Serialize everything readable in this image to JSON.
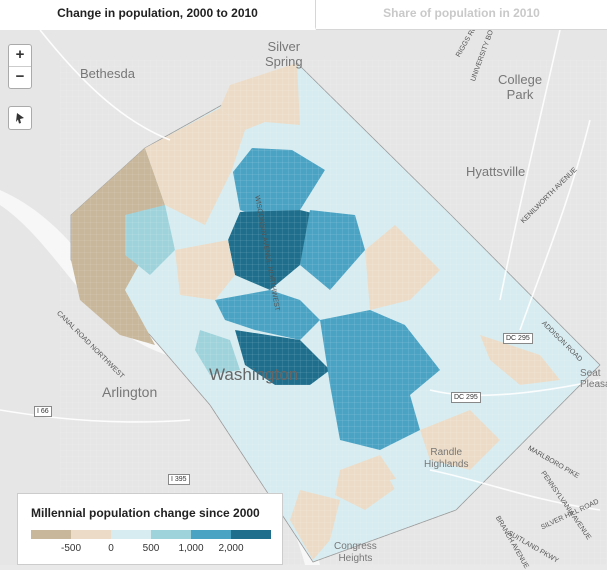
{
  "tabs": [
    {
      "label": "Change in population, 2000 to 2010",
      "active": true
    },
    {
      "label": "Share of population in 2010",
      "active": false
    }
  ],
  "controls": {
    "zoom_in": "+",
    "zoom_out": "−"
  },
  "legend": {
    "title": "Millennial population change since 2000",
    "colors": [
      "#c8b79a",
      "#ecdcc7",
      "#d7ecf1",
      "#9fd3dc",
      "#4ba3c4",
      "#1f6f8c"
    ],
    "ticks": [
      "-500",
      "0",
      "500",
      "1,000",
      "2,000"
    ]
  },
  "places": {
    "silver_spring": "Silver\nSpring",
    "bethesda": "Bethesda",
    "college_park": "College\nPark",
    "hyattsville": "Hyattsville",
    "arlington": "Arlington",
    "washington": "Washington",
    "randle_highlands": "Randle\nHighlands",
    "congress_heights": "Congress\nHeights",
    "seat_pleasant": "Seat\nPleasa"
  },
  "roads": {
    "canal_road": "CANAL ROAD NORTHWEST",
    "wisconsin": "WISCONSIN AVENUE NORTHWEST",
    "kenilworth": "KENILWORTH AVENUE",
    "addison": "ADDISON ROAD",
    "branch": "BRANCH AVENUE",
    "marlboro": "MARLBORO PIKE",
    "pennsylvania": "PENNSYLVANIA AVENUE",
    "suitland": "SUITLAND PKWY",
    "silver_hill": "SILVER HILL ROAD",
    "university": "UNIVERSITY BOULEVARD",
    "riggs": "RIGGS ROAD"
  },
  "shields": {
    "dc295_a": "DC 295",
    "dc295_b": "DC 295",
    "i66": "I 66",
    "i395": "I 395"
  }
}
